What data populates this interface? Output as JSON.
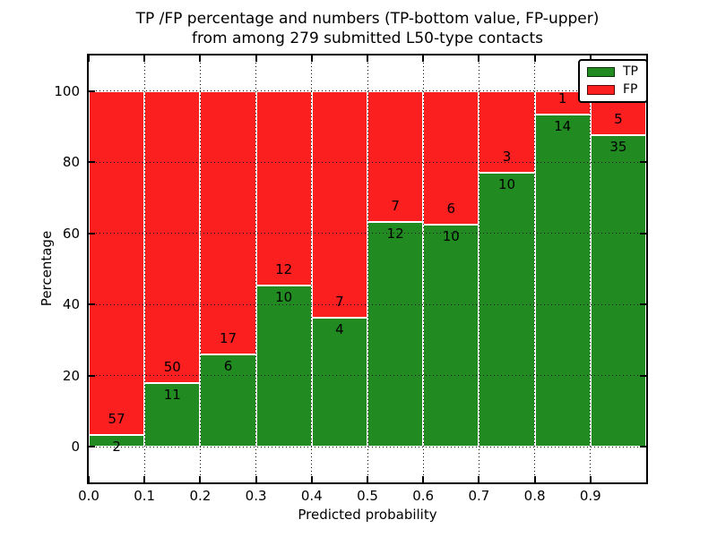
{
  "title": {
    "line1": "TP /FP percentage and numbers (TP-bottom value, FP-upper)",
    "line2": "from among 279 submitted L50-type contacts"
  },
  "chart_data": {
    "type": "bar",
    "stacked": true,
    "normalized_to_percent": true,
    "title": "TP /FP percentage and numbers (TP-bottom value, FP-upper) from among 279 submitted L50-type contacts",
    "xlabel": "Predicted probability",
    "ylabel": "Percentage",
    "xlim": [
      0,
      1
    ],
    "ylim": [
      -10,
      110
    ],
    "grid": true,
    "legend_position": "upper right",
    "bin_edges": [
      0.0,
      0.1,
      0.2,
      0.3,
      0.4,
      0.5,
      0.6,
      0.7,
      0.8,
      0.9,
      1.0
    ],
    "x_ticks": [
      {
        "value": 0.0,
        "label": "0.0"
      },
      {
        "value": 0.1,
        "label": "0.1"
      },
      {
        "value": 0.2,
        "label": "0.2"
      },
      {
        "value": 0.3,
        "label": "0.3"
      },
      {
        "value": 0.4,
        "label": "0.4"
      },
      {
        "value": 0.5,
        "label": "0.5"
      },
      {
        "value": 0.6,
        "label": "0.6"
      },
      {
        "value": 0.7,
        "label": "0.7"
      },
      {
        "value": 0.8,
        "label": "0.8"
      },
      {
        "value": 0.9,
        "label": "0.9"
      }
    ],
    "y_ticks": [
      {
        "value": 0,
        "label": "0"
      },
      {
        "value": 20,
        "label": "20"
      },
      {
        "value": 40,
        "label": "40"
      },
      {
        "value": 60,
        "label": "60"
      },
      {
        "value": 80,
        "label": "80"
      },
      {
        "value": 100,
        "label": "100"
      }
    ],
    "series": [
      {
        "name": "TP",
        "color": "#218a21",
        "counts": [
          2,
          11,
          6,
          10,
          4,
          12,
          10,
          10,
          14,
          35
        ]
      },
      {
        "name": "FP",
        "color": "#fb1f1f",
        "counts": [
          57,
          50,
          17,
          12,
          7,
          7,
          6,
          3,
          1,
          5
        ]
      }
    ],
    "total_contacts": 279
  }
}
